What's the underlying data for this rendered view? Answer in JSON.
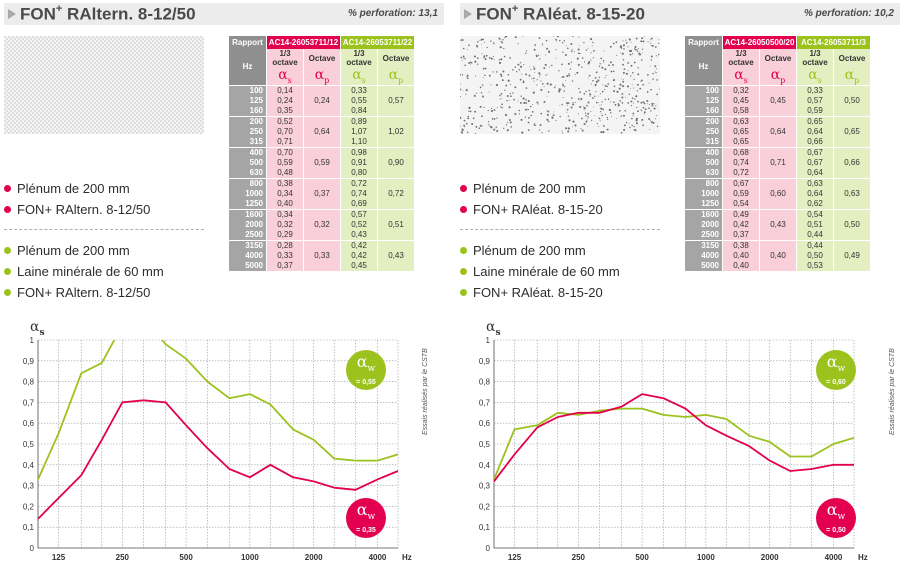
{
  "colors": {
    "red": "#e2004f",
    "green": "#9cc21e",
    "red_light": "#f9cfd9",
    "green_light": "#e3efc1",
    "gray_header": "#8f8f8f"
  },
  "panels": [
    {
      "title_prefix": "FON",
      "title_sup": "+",
      "title_rest": " RAltern. 8-12/50",
      "perforation": "% perforation: 13,1",
      "table": {
        "rapport_label": "Rapport",
        "ref_red": "AC14-26053711/12",
        "ref_green": "AC14-26053711/22",
        "hz_label": "Hz",
        "third_octave": "1/3 octave",
        "octave": "Octave",
        "alpha_s": "α",
        "alpha_s_sub": "s",
        "alpha_p": "α",
        "alpha_p_sub": "p",
        "rows": [
          {
            "hz": "100",
            "red": "0,14",
            "green": "0,33"
          },
          {
            "hz": "125",
            "red": "0,24",
            "green": "0,55"
          },
          {
            "hz": "160",
            "red": "0,35",
            "green": "0,84"
          },
          {
            "hz": "200",
            "red": "0,52",
            "green": "0,89"
          },
          {
            "hz": "250",
            "red": "0,70",
            "green": "1,07"
          },
          {
            "hz": "315",
            "red": "0,71",
            "green": "1,10"
          },
          {
            "hz": "400",
            "red": "0,70",
            "green": "0,98"
          },
          {
            "hz": "500",
            "red": "0,59",
            "green": "0,91"
          },
          {
            "hz": "630",
            "red": "0,48",
            "green": "0,80"
          },
          {
            "hz": "800",
            "red": "0,38",
            "green": "0,72"
          },
          {
            "hz": "1000",
            "red": "0,34",
            "green": "0,74"
          },
          {
            "hz": "1250",
            "red": "0,40",
            "green": "0,69"
          },
          {
            "hz": "1600",
            "red": "0,34",
            "green": "0,57"
          },
          {
            "hz": "2000",
            "red": "0,32",
            "green": "0,52"
          },
          {
            "hz": "2500",
            "red": "0,29",
            "green": "0,43"
          },
          {
            "hz": "3150",
            "red": "0,28",
            "green": "0,42"
          },
          {
            "hz": "4000",
            "red": "0,33",
            "green": "0,42"
          },
          {
            "hz": "5000",
            "red": "0,37",
            "green": "0,45"
          }
        ],
        "octave_red": [
          "0,24",
          "0,64",
          "0,59",
          "0,37",
          "0,32",
          "0,33"
        ],
        "octave_green": [
          "0,57",
          "1,02",
          "0,90",
          "0,72",
          "0,51",
          "0,43"
        ]
      },
      "legend_red": [
        "Plénum de 200 mm",
        "FON+ RAltern. 8-12/50"
      ],
      "legend_green": [
        "Plénum de 200 mm",
        "Laine minérale de 60 mm",
        "FON+ RAltern. 8-12/50"
      ],
      "badge_green": {
        "symbol": "α",
        "sub": "w",
        "value": "= 0,55"
      },
      "badge_red": {
        "symbol": "α",
        "sub": "w",
        "value": "= 0,35"
      },
      "side_note": "Essais réalisés par le CSTB"
    },
    {
      "title_prefix": "FON",
      "title_sup": "+",
      "title_rest": " RAléat. 8-15-20",
      "perforation": "% perforation: 10,2",
      "table": {
        "rapport_label": "Rapport",
        "ref_red": "AC14-26050500/20",
        "ref_green": "AC14-26053711/3",
        "hz_label": "Hz",
        "third_octave": "1/3 octave",
        "octave": "Octave",
        "alpha_s": "α",
        "alpha_s_sub": "s",
        "alpha_p": "α",
        "alpha_p_sub": "p",
        "rows": [
          {
            "hz": "100",
            "red": "0,32",
            "green": "0,33"
          },
          {
            "hz": "125",
            "red": "0,45",
            "green": "0,57"
          },
          {
            "hz": "160",
            "red": "0,58",
            "green": "0,59"
          },
          {
            "hz": "200",
            "red": "0,63",
            "green": "0,65"
          },
          {
            "hz": "250",
            "red": "0,65",
            "green": "0,64"
          },
          {
            "hz": "315",
            "red": "0,65",
            "green": "0,66"
          },
          {
            "hz": "400",
            "red": "0,68",
            "green": "0,67"
          },
          {
            "hz": "500",
            "red": "0,74",
            "green": "0,67"
          },
          {
            "hz": "630",
            "red": "0,72",
            "green": "0,64"
          },
          {
            "hz": "800",
            "red": "0,67",
            "green": "0,63"
          },
          {
            "hz": "1000",
            "red": "0,59",
            "green": "0,64"
          },
          {
            "hz": "1250",
            "red": "0,54",
            "green": "0,62"
          },
          {
            "hz": "1600",
            "red": "0,49",
            "green": "0,54"
          },
          {
            "hz": "2000",
            "red": "0,42",
            "green": "0,51"
          },
          {
            "hz": "2500",
            "red": "0,37",
            "green": "0,44"
          },
          {
            "hz": "3150",
            "red": "0,38",
            "green": "0,44"
          },
          {
            "hz": "4000",
            "red": "0,40",
            "green": "0,50"
          },
          {
            "hz": "5000",
            "red": "0,40",
            "green": "0,53"
          }
        ],
        "octave_red": [
          "0,45",
          "0,64",
          "0,71",
          "0,60",
          "0,43",
          "0,40"
        ],
        "octave_green": [
          "0,50",
          "0,65",
          "0,66",
          "0,63",
          "0,50",
          "0,49"
        ]
      },
      "legend_red": [
        "Plénum de 200 mm",
        "FON+ RAléat. 8-15-20"
      ],
      "legend_green": [
        "Plénum de 200 mm",
        "Laine minérale de 60 mm",
        "FON+ RAléat. 8-15-20"
      ],
      "badge_green": {
        "symbol": "α",
        "sub": "w",
        "value": "= 0,60"
      },
      "badge_red": {
        "symbol": "α",
        "sub": "w",
        "value": "= 0,50"
      },
      "side_note": "Essais réalisés par le CSTB"
    }
  ],
  "chart_data": [
    {
      "type": "line",
      "ylabel": "αs",
      "xlabel": "Hz",
      "x_scale": "log",
      "x": [
        100,
        125,
        160,
        200,
        250,
        315,
        400,
        500,
        630,
        800,
        1000,
        1250,
        1600,
        2000,
        2500,
        3150,
        4000,
        5000
      ],
      "x_ticks": [
        "125",
        "250",
        "500",
        "1000",
        "2000",
        "4000"
      ],
      "y_ticks": [
        "0",
        "0,1",
        "0,2",
        "0,3",
        "0,4",
        "0,5",
        "0,6",
        "0,7",
        "0,8",
        "0,9",
        "1"
      ],
      "ylim": [
        0,
        1
      ],
      "grid": true,
      "series": [
        {
          "color": "#9cc21e",
          "values": [
            0.33,
            0.55,
            0.84,
            0.89,
            1.07,
            1.1,
            0.98,
            0.91,
            0.8,
            0.72,
            0.74,
            0.69,
            0.57,
            0.52,
            0.43,
            0.42,
            0.42,
            0.45
          ]
        },
        {
          "color": "#e2004f",
          "values": [
            0.14,
            0.24,
            0.35,
            0.52,
            0.7,
            0.71,
            0.7,
            0.59,
            0.48,
            0.38,
            0.34,
            0.4,
            0.34,
            0.32,
            0.29,
            0.28,
            0.33,
            0.37
          ]
        }
      ]
    },
    {
      "type": "line",
      "ylabel": "αs",
      "xlabel": "Hz",
      "x_scale": "log",
      "x": [
        100,
        125,
        160,
        200,
        250,
        315,
        400,
        500,
        630,
        800,
        1000,
        1250,
        1600,
        2000,
        2500,
        3150,
        4000,
        5000
      ],
      "x_ticks": [
        "125",
        "250",
        "500",
        "1000",
        "2000",
        "4000"
      ],
      "y_ticks": [
        "0",
        "0,1",
        "0,2",
        "0,3",
        "0,4",
        "0,5",
        "0,6",
        "0,7",
        "0,8",
        "0,9",
        "1"
      ],
      "ylim": [
        0,
        1
      ],
      "grid": true,
      "series": [
        {
          "color": "#9cc21e",
          "values": [
            0.33,
            0.57,
            0.59,
            0.65,
            0.64,
            0.66,
            0.67,
            0.67,
            0.64,
            0.63,
            0.64,
            0.62,
            0.54,
            0.51,
            0.44,
            0.44,
            0.5,
            0.53
          ]
        },
        {
          "color": "#e2004f",
          "values": [
            0.32,
            0.45,
            0.58,
            0.63,
            0.65,
            0.65,
            0.68,
            0.74,
            0.72,
            0.67,
            0.59,
            0.54,
            0.49,
            0.42,
            0.37,
            0.38,
            0.4,
            0.4
          ]
        }
      ]
    }
  ]
}
